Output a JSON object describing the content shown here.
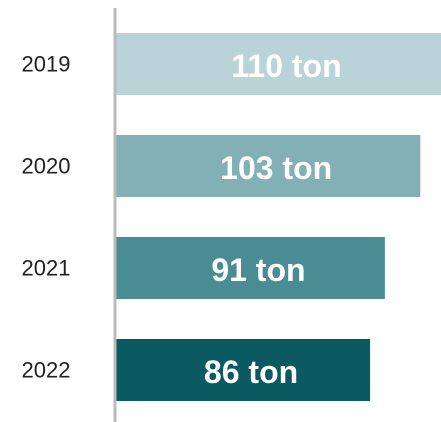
{
  "chart_data": {
    "type": "bar",
    "orientation": "horizontal",
    "categories": [
      "2019",
      "2020",
      "2021",
      "2022"
    ],
    "values": [
      110,
      103,
      91,
      86
    ],
    "value_labels": [
      "110 ton",
      "103 ton",
      "91 ton",
      "86 ton"
    ],
    "colors": [
      "#b9d3d8",
      "#82b0b4",
      "#4a8c94",
      "#0b5a62"
    ],
    "xlim": [
      0,
      110
    ]
  }
}
